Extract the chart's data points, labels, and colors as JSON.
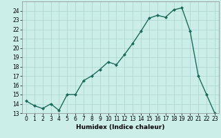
{
  "x": [
    0,
    1,
    2,
    3,
    4,
    5,
    6,
    7,
    8,
    9,
    10,
    11,
    12,
    13,
    14,
    15,
    16,
    17,
    18,
    19,
    20,
    21,
    22,
    23
  ],
  "y": [
    14.3,
    13.8,
    13.5,
    14.0,
    13.3,
    15.0,
    15.0,
    16.5,
    17.0,
    17.7,
    18.5,
    18.2,
    19.3,
    20.5,
    21.8,
    23.2,
    23.5,
    23.3,
    24.1,
    24.3,
    21.8,
    17.0,
    15.0,
    13.0
  ],
  "line_color": "#1a6b5a",
  "marker": "D",
  "marker_size": 2.0,
  "linewidth": 1.0,
  "xlabel": "Humidex (Indice chaleur)",
  "xlim": [
    -0.5,
    23.5
  ],
  "ylim": [
    13,
    25
  ],
  "yticks": [
    13,
    14,
    15,
    16,
    17,
    18,
    19,
    20,
    21,
    22,
    23,
    24
  ],
  "xticks": [
    0,
    1,
    2,
    3,
    4,
    5,
    6,
    7,
    8,
    9,
    10,
    11,
    12,
    13,
    14,
    15,
    16,
    17,
    18,
    19,
    20,
    21,
    22,
    23
  ],
  "bg_color": "#cceee8",
  "grid_color": "#aad4ce",
  "label_fontsize": 6.5,
  "tick_fontsize": 5.5
}
